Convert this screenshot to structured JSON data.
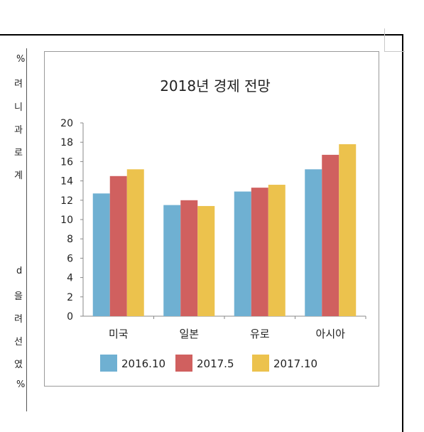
{
  "text_fragments": [
    "%",
    "려",
    "니",
    "과",
    "로",
    "계",
    "d",
    "을",
    "려",
    "선",
    "였",
    "%"
  ],
  "chart_data": {
    "type": "bar",
    "title": "2018년 경제 전망",
    "categories": [
      "미국",
      "일본",
      "유로",
      "아시아"
    ],
    "series": [
      {
        "name": "2016.10",
        "color": "#6fb0d2",
        "values": [
          12.7,
          11.5,
          12.9,
          15.2
        ]
      },
      {
        "name": "2017.5",
        "color": "#d0605f",
        "values": [
          14.5,
          12.0,
          13.3,
          16.7
        ]
      },
      {
        "name": "2017.10",
        "color": "#ecc24d",
        "values": [
          15.2,
          11.4,
          13.6,
          17.8
        ]
      }
    ],
    "ylim": [
      0,
      20
    ],
    "yticks": [
      0,
      2,
      4,
      6,
      8,
      10,
      12,
      14,
      16,
      18,
      20
    ],
    "xlabel": "",
    "ylabel": "",
    "legend_position": "bottom",
    "grid": false
  }
}
